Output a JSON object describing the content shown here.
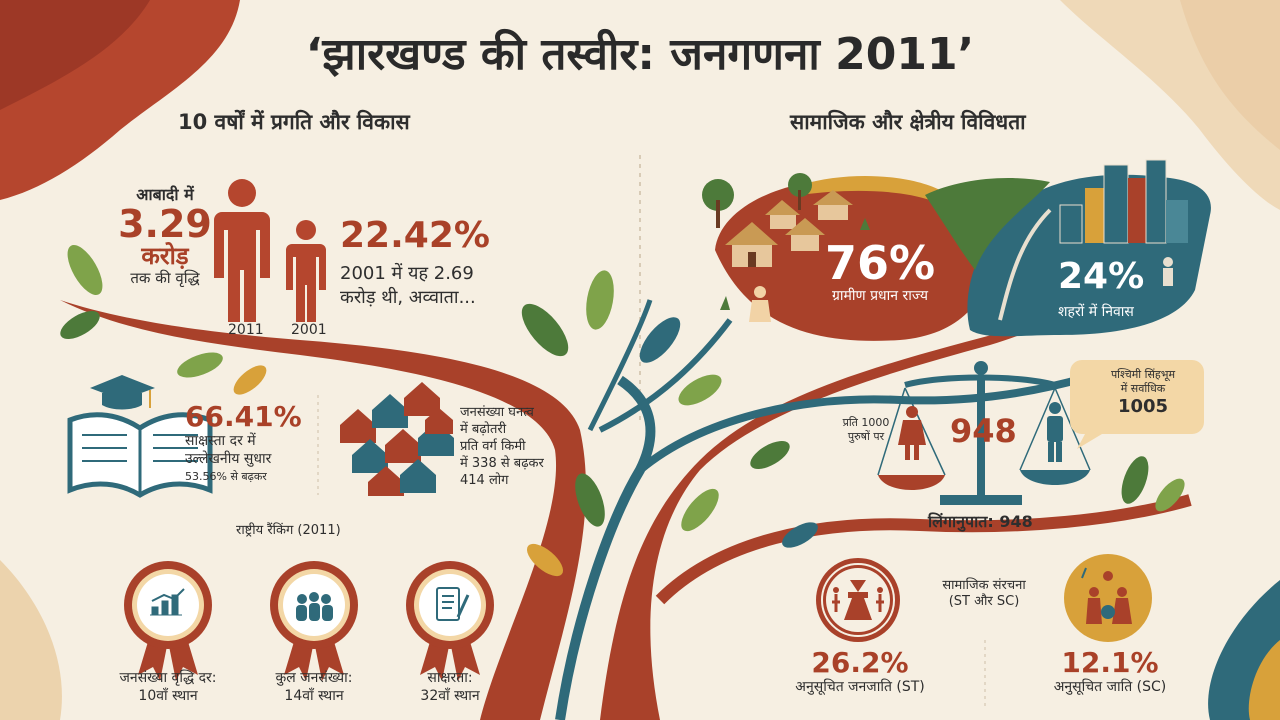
{
  "title": "‘झारखण्ड की तस्वीर: जनगणना 2011’",
  "left_section": {
    "heading": "10 वर्षों में प्रगति और विकास",
    "population": {
      "label_top": "आबादी में",
      "value": "3.29",
      "unit": "करोड़",
      "label_bottom": "तक की वृद्धि",
      "year_2011": "2011",
      "year_2001": "2001",
      "growth": "22.42%",
      "note_line1": "2001 में यह 2.69",
      "note_line2": "करोड़ थी, अव्वाता..."
    },
    "literacy": {
      "value": "66.41%",
      "line1": "साक्षस्ता दर में",
      "line2": "उल्लेखनीय सुधार",
      "line3": "53.56% से बढ़कर"
    },
    "density": {
      "line1": "जनसंख्या घनत्व",
      "line2": "में बढ़ोतरी",
      "line3": "प्रति वर्ग किमी",
      "line4": "में 338 से बढ़कर",
      "line5": "414 लोग"
    },
    "ranking": {
      "heading": "राष्ट्रीय रैंकिंग (2011)",
      "badges": [
        {
          "line1": "जनसंख्या वृद्धि दर:",
          "line2": "10वाँ स्थान"
        },
        {
          "line1": "कुल जनसंख्या:",
          "line2": "14वाँ स्थान"
        },
        {
          "line1": "साक्षरता:",
          "line2": "32वाँ स्थान"
        }
      ]
    }
  },
  "right_section": {
    "heading": "सामाजिक और क्षेत्रीय विविधता",
    "rural": {
      "value": "76%",
      "label": "ग्रामीण प्रधान राज्य"
    },
    "urban": {
      "value": "24%",
      "label": "शहरों में निवास"
    },
    "sex_ratio": {
      "per_line1": "प्रति 1000",
      "per_line2": "पुरुषों पर",
      "value": "948",
      "caption": "लिंगानुपात: 948",
      "bubble_line1": "पश्चिमी सिंहभूम",
      "bubble_line2": "में सर्वाधिक",
      "bubble_value": "1005"
    },
    "social": {
      "line1": "सामाजिक संरचना",
      "line2": "(ST और SC)",
      "st_value": "26.2%",
      "st_label": "अनुसूचित जनजाति (ST)",
      "sc_value": "12.1%",
      "sc_label": "अनुसूचित जाति (SC)"
    }
  }
}
